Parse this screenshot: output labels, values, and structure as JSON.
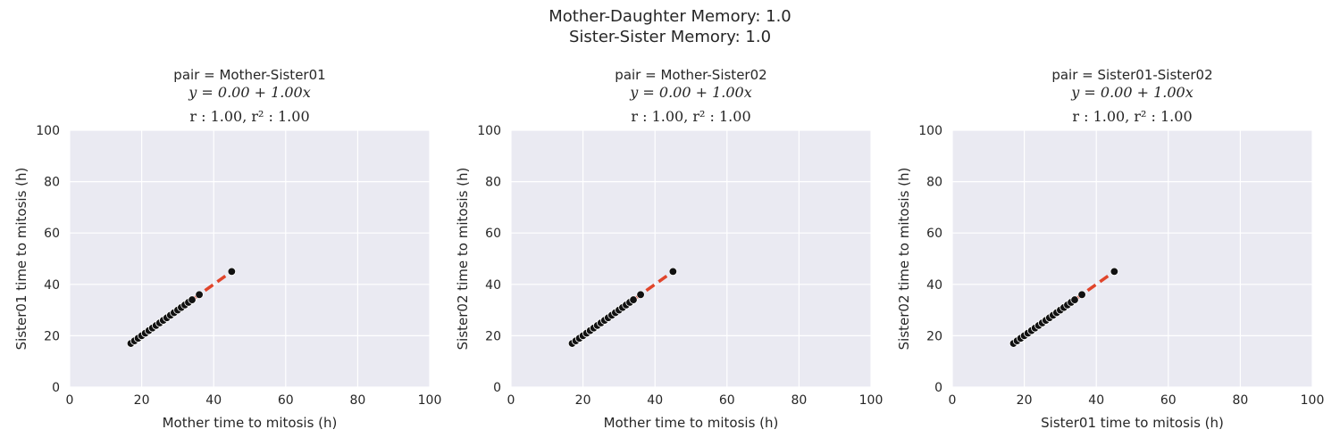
{
  "suptitle": [
    "Mother-Daughter Memory: 1.0",
    "Sister-Sister Memory: 1.0"
  ],
  "colors": {
    "panel_bg": "#eaeaf2",
    "grid": "#ffffff",
    "points": "#111111",
    "fit_line": "#e0452b"
  },
  "chart_data": [
    {
      "type": "scatter",
      "title": "pair = Mother-Sister01",
      "annotation": [
        "y = 0.00 + 1.00x",
        "r : 1.00, r² : 1.00"
      ],
      "xlabel": "Mother time to mitosis (h)",
      "ylabel": "Sister01 time to mitosis (h)",
      "xlim": [
        0,
        100
      ],
      "ylim": [
        0,
        100
      ],
      "xticks": [
        0,
        20,
        40,
        60,
        80,
        100
      ],
      "yticks": [
        0,
        20,
        40,
        60,
        80,
        100
      ],
      "grid": true,
      "fit": {
        "intercept": 0.0,
        "slope": 1.0,
        "x_range": [
          17,
          45
        ],
        "style": "dashed"
      },
      "points": [
        [
          17,
          17
        ],
        [
          18,
          18
        ],
        [
          19,
          19
        ],
        [
          20,
          20
        ],
        [
          21,
          21
        ],
        [
          22,
          22
        ],
        [
          23,
          23
        ],
        [
          24,
          24
        ],
        [
          25,
          25
        ],
        [
          26,
          26
        ],
        [
          27,
          27
        ],
        [
          28,
          28
        ],
        [
          29,
          29
        ],
        [
          30,
          30
        ],
        [
          31,
          31
        ],
        [
          32,
          32
        ],
        [
          33,
          33
        ],
        [
          34,
          34
        ],
        [
          36,
          36
        ],
        [
          45,
          45
        ]
      ]
    },
    {
      "type": "scatter",
      "title": "pair = Mother-Sister02",
      "annotation": [
        "y = 0.00 + 1.00x",
        "r : 1.00, r² : 1.00"
      ],
      "xlabel": "Mother time to mitosis (h)",
      "ylabel": "Sister02 time to mitosis (h)",
      "xlim": [
        0,
        100
      ],
      "ylim": [
        0,
        100
      ],
      "xticks": [
        0,
        20,
        40,
        60,
        80,
        100
      ],
      "yticks": [
        0,
        20,
        40,
        60,
        80,
        100
      ],
      "grid": true,
      "fit": {
        "intercept": 0.0,
        "slope": 1.0,
        "x_range": [
          17,
          45
        ],
        "style": "dashed"
      },
      "points": [
        [
          17,
          17
        ],
        [
          18,
          18
        ],
        [
          19,
          19
        ],
        [
          20,
          20
        ],
        [
          21,
          21
        ],
        [
          22,
          22
        ],
        [
          23,
          23
        ],
        [
          24,
          24
        ],
        [
          25,
          25
        ],
        [
          26,
          26
        ],
        [
          27,
          27
        ],
        [
          28,
          28
        ],
        [
          29,
          29
        ],
        [
          30,
          30
        ],
        [
          31,
          31
        ],
        [
          32,
          32
        ],
        [
          33,
          33
        ],
        [
          34,
          34
        ],
        [
          36,
          36
        ],
        [
          45,
          45
        ]
      ]
    },
    {
      "type": "scatter",
      "title": "pair = Sister01-Sister02",
      "annotation": [
        "y = 0.00 + 1.00x",
        "r : 1.00, r² : 1.00"
      ],
      "xlabel": "Sister01 time to mitosis (h)",
      "ylabel": "Sister02 time to mitosis (h)",
      "xlim": [
        0,
        100
      ],
      "ylim": [
        0,
        100
      ],
      "xticks": [
        0,
        20,
        40,
        60,
        80,
        100
      ],
      "yticks": [
        0,
        20,
        40,
        60,
        80,
        100
      ],
      "grid": true,
      "fit": {
        "intercept": 0.0,
        "slope": 1.0,
        "x_range": [
          17,
          45
        ],
        "style": "dashed"
      },
      "points": [
        [
          17,
          17
        ],
        [
          18,
          18
        ],
        [
          19,
          19
        ],
        [
          20,
          20
        ],
        [
          21,
          21
        ],
        [
          22,
          22
        ],
        [
          23,
          23
        ],
        [
          24,
          24
        ],
        [
          25,
          25
        ],
        [
          26,
          26
        ],
        [
          27,
          27
        ],
        [
          28,
          28
        ],
        [
          29,
          29
        ],
        [
          30,
          30
        ],
        [
          31,
          31
        ],
        [
          32,
          32
        ],
        [
          33,
          33
        ],
        [
          34,
          34
        ],
        [
          36,
          36
        ],
        [
          45,
          45
        ]
      ]
    }
  ]
}
